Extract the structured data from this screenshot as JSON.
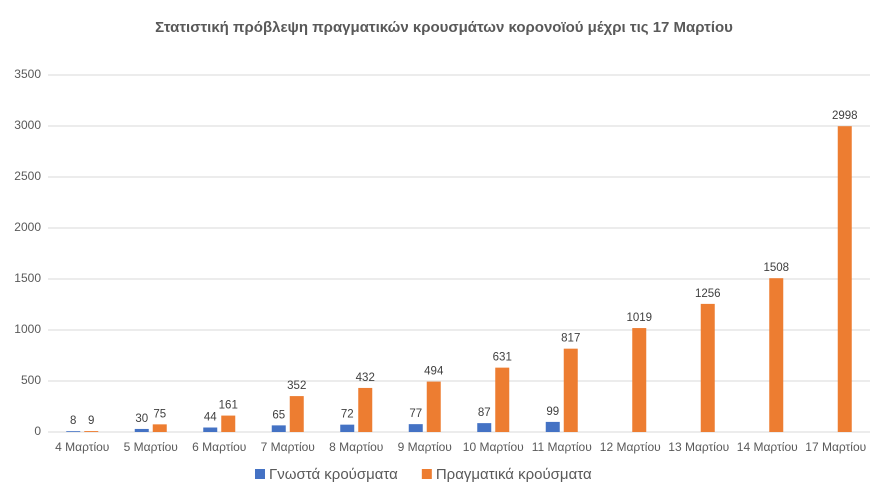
{
  "chart_data": {
    "type": "bar",
    "title": "Στατιστική πρόβλεψη πραγματικών κρουσμάτων κορονοϊού μέχρι τις 17 Μαρτίου",
    "categories": [
      "4 Μαρτίου",
      "5 Μαρτίου",
      "6 Μαρτίου",
      "7 Μαρτίου",
      "8 Μαρτίου",
      "9 Μαρτίου",
      "10 Μαρτίου",
      "11 Μαρτίου",
      "12 Μαρτίου",
      "13 Μαρτίου",
      "14 Μαρτίου",
      "17 Μαρτίου"
    ],
    "series": [
      {
        "name": "Γνωστά κρούσματα",
        "color": "#4472c4",
        "values": [
          8,
          30,
          44,
          65,
          72,
          77,
          87,
          99,
          null,
          null,
          null,
          null
        ]
      },
      {
        "name": "Πραγματικά κρούσματα",
        "color": "#ed7d31",
        "values": [
          9,
          75,
          161,
          352,
          432,
          494,
          631,
          817,
          1019,
          1256,
          1508,
          2998
        ]
      }
    ],
    "ylim": [
      0,
      3500
    ],
    "yticks": [
      0,
      500,
      1000,
      1500,
      2000,
      2500,
      3000,
      3500
    ],
    "grid": true,
    "legend": "bottom"
  }
}
